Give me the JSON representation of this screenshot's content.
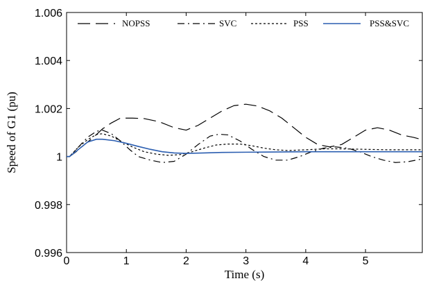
{
  "chart_data": {
    "type": "line",
    "title": "",
    "xlabel": "Time (s)",
    "ylabel": "Speed of G1 (pu)",
    "xlim": [
      0,
      5.95
    ],
    "ylim": [
      0.996,
      1.006
    ],
    "xticks": [
      0,
      1,
      2,
      3,
      4,
      5
    ],
    "xtick_labels": [
      "0",
      "1",
      "2",
      "3",
      "4",
      "5"
    ],
    "yticks": [
      0.996,
      0.998,
      1.0,
      1.002,
      1.004,
      1.006
    ],
    "ytick_labels": [
      "0.996",
      "0.998",
      "1",
      "1.002",
      "1.004",
      "1.006"
    ],
    "grid": false,
    "legend_position": "top",
    "series": [
      {
        "name": "NOPSS",
        "color": "#000000",
        "style": "longdash",
        "x": [
          0,
          0.05,
          0.15,
          0.3,
          0.45,
          0.6,
          0.75,
          0.9,
          1.1,
          1.3,
          1.55,
          1.8,
          2.0,
          2.2,
          2.4,
          2.6,
          2.8,
          3.0,
          3.2,
          3.4,
          3.6,
          3.8,
          4.0,
          4.2,
          4.4,
          4.6,
          4.8,
          5.0,
          5.2,
          5.4,
          5.6,
          5.8,
          5.95
        ],
        "y": [
          1.0,
          1.0,
          1.00018,
          1.0005,
          1.0008,
          1.00115,
          1.0014,
          1.0016,
          1.0016,
          1.00158,
          1.00145,
          1.0012,
          1.0011,
          1.0013,
          1.0016,
          1.0019,
          1.00212,
          1.00218,
          1.0021,
          1.0019,
          1.0016,
          1.0012,
          1.0008,
          1.0005,
          1.0004,
          1.0005,
          1.0008,
          1.0011,
          1.0012,
          1.0011,
          1.0009,
          1.0008,
          1.0007
        ]
      },
      {
        "name": "SVC",
        "color": "#000000",
        "style": "dashdot",
        "x": [
          0,
          0.05,
          0.2,
          0.35,
          0.5,
          0.6,
          0.75,
          0.9,
          1.05,
          1.2,
          1.4,
          1.6,
          1.8,
          2.0,
          2.2,
          2.4,
          2.55,
          2.7,
          2.9,
          3.1,
          3.3,
          3.5,
          3.7,
          3.9,
          4.1,
          4.3,
          4.5,
          4.7,
          4.9,
          5.1,
          5.3,
          5.5,
          5.7,
          5.95
        ],
        "y": [
          1.0,
          1.0,
          1.0004,
          1.0008,
          1.00105,
          1.0011,
          1.00095,
          1.00065,
          1.0003,
          1.0,
          0.99985,
          0.99975,
          0.9998,
          1.0001,
          1.0005,
          1.00085,
          1.00093,
          1.0009,
          1.00065,
          1.0003,
          1.0,
          0.99985,
          0.99985,
          1.0,
          1.0002,
          1.00035,
          1.0004,
          1.00035,
          1.0002,
          1.0,
          0.99985,
          0.99975,
          0.99978,
          0.9999
        ]
      },
      {
        "name": "PSS",
        "color": "#000000",
        "style": "dotted",
        "x": [
          0,
          0.05,
          0.2,
          0.35,
          0.5,
          0.6,
          0.75,
          0.9,
          1.1,
          1.3,
          1.5,
          1.7,
          1.9,
          2.1,
          2.3,
          2.5,
          2.7,
          2.9,
          3.1,
          3.3,
          3.5,
          3.7,
          4.0,
          4.3,
          4.6,
          5.0,
          5.4,
          5.95
        ],
        "y": [
          1.0,
          1.0,
          1.0004,
          1.0007,
          1.00092,
          1.00095,
          1.00085,
          1.00065,
          1.0004,
          1.0002,
          1.0001,
          1.00005,
          1.00008,
          1.0002,
          1.00035,
          1.00048,
          1.00052,
          1.00052,
          1.00045,
          1.00035,
          1.00028,
          1.00025,
          1.00028,
          1.00032,
          1.00032,
          1.0003,
          1.00028,
          1.00028
        ]
      },
      {
        "name": "PSS&SVC",
        "color": "#2a5db0",
        "style": "solid",
        "x": [
          0,
          0.05,
          0.2,
          0.35,
          0.5,
          0.6,
          0.8,
          1.0,
          1.2,
          1.4,
          1.6,
          1.8,
          2.0,
          2.3,
          2.6,
          3.0,
          3.5,
          4.0,
          4.5,
          5.0,
          5.5,
          5.95
        ],
        "y": [
          1.0,
          1.0,
          1.0003,
          1.0006,
          1.00072,
          1.00072,
          1.00066,
          1.00055,
          1.00042,
          1.0003,
          1.0002,
          1.00015,
          1.00013,
          1.00015,
          1.00017,
          1.00018,
          1.00019,
          1.0002,
          1.0002,
          1.0002,
          1.0002,
          1.0002
        ]
      }
    ]
  }
}
